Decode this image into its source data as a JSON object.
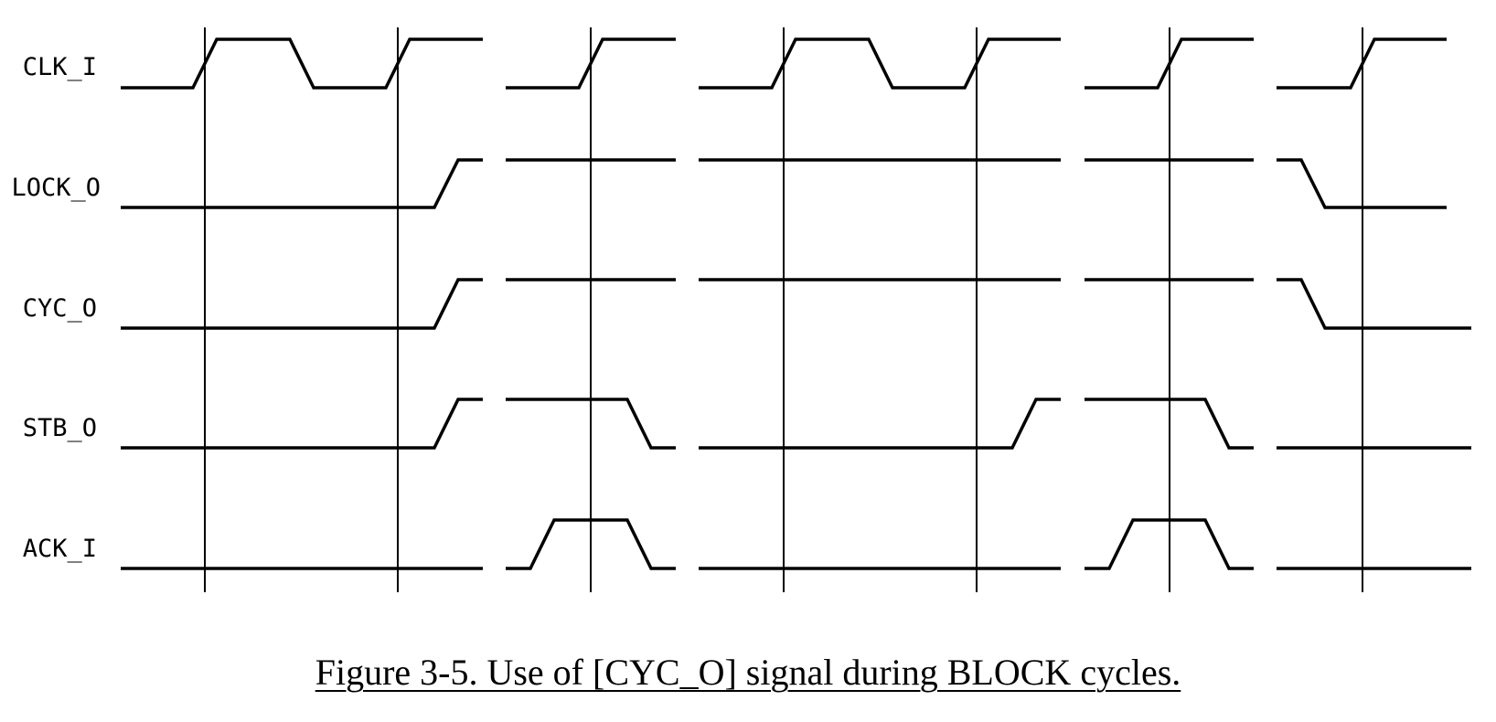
{
  "figure": {
    "caption": "Figure 3-5.  Use of [CYC_O] signal during BLOCK cycles.",
    "ink_color": "#000000"
  },
  "timing": {
    "segments": 5,
    "segment_periods": [
      2,
      1,
      2,
      1,
      1
    ],
    "clock_edges_per_segment": [
      2,
      1,
      2,
      1,
      1
    ],
    "signals": [
      {
        "name": "CLK_I",
        "pattern": "clock"
      },
      {
        "name": "LOCK_O",
        "levels_by_segment": [
          [
            "L",
            "H"
          ],
          [
            "H"
          ],
          [
            "H",
            "H"
          ],
          [
            "H"
          ],
          [
            "H",
            "L"
          ]
        ]
      },
      {
        "name": "CYC_O",
        "levels_by_segment": [
          [
            "L",
            "H"
          ],
          [
            "H"
          ],
          [
            "H",
            "H"
          ],
          [
            "H"
          ],
          [
            "H",
            "L"
          ]
        ]
      },
      {
        "name": "STB_O",
        "levels_by_segment": [
          [
            "L",
            "H"
          ],
          [
            "H",
            "L"
          ],
          [
            "L",
            "H"
          ],
          [
            "H",
            "L"
          ],
          [
            "L"
          ]
        ]
      },
      {
        "name": "ACK_I",
        "levels_by_segment": [
          [
            "L",
            "L"
          ],
          [
            "L",
            "H",
            "L"
          ],
          [
            "L",
            "L"
          ],
          [
            "L",
            "H",
            "L"
          ],
          [
            "L"
          ]
        ]
      }
    ]
  }
}
